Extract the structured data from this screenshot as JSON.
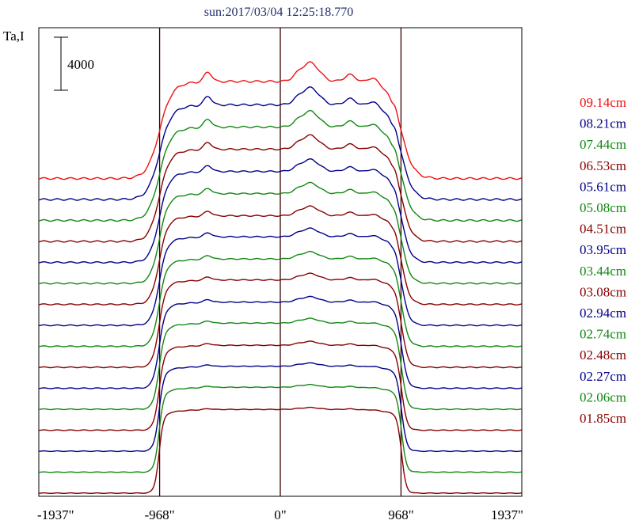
{
  "chart_data": {
    "type": "line",
    "title": "sun:2017/03/04 12:25:18.770",
    "ylabel": "Ta,I",
    "scale_bar_label": "4000",
    "scale_bar_value": 4000,
    "xlim": [
      -1937,
      1937
    ],
    "x_ticks": [
      {
        "value": -1937,
        "label": "-1937\""
      },
      {
        "value": -968,
        "label": "-968\""
      },
      {
        "value": 0,
        "label": "0\""
      },
      {
        "value": 968,
        "label": "968\""
      },
      {
        "value": 1937,
        "label": "1937\""
      }
    ],
    "vertical_markers": [
      -968,
      0,
      968
    ],
    "grid": false,
    "legend_position": "right",
    "series": [
      {
        "name": "09.14cm",
        "color": "#ee1111",
        "plateau": 8000,
        "bump": 1.55
      },
      {
        "name": "08.21cm",
        "color": "#000088",
        "plateau": 7800,
        "bump": 1.45
      },
      {
        "name": "07.44cm",
        "color": "#118811",
        "plateau": 7700,
        "bump": 1.35
      },
      {
        "name": "06.53cm",
        "color": "#880000",
        "plateau": 7600,
        "bump": 1.2
      },
      {
        "name": "05.61cm",
        "color": "#000088",
        "plateau": 7500,
        "bump": 1.05
      },
      {
        "name": "05.08cm",
        "color": "#118811",
        "plateau": 7400,
        "bump": 0.95
      },
      {
        "name": "04.51cm",
        "color": "#880000",
        "plateau": 7300,
        "bump": 0.85
      },
      {
        "name": "03.95cm",
        "color": "#000088",
        "plateau": 7300,
        "bump": 0.75
      },
      {
        "name": "03.44cm",
        "color": "#118811",
        "plateau": 7200,
        "bump": 0.65
      },
      {
        "name": "03.08cm",
        "color": "#880000",
        "plateau": 7200,
        "bump": 0.58
      },
      {
        "name": "02.94cm",
        "color": "#000088",
        "plateau": 7100,
        "bump": 0.5
      },
      {
        "name": "02.74cm",
        "color": "#118811",
        "plateau": 7100,
        "bump": 0.42
      },
      {
        "name": "02.48cm",
        "color": "#880000",
        "plateau": 7000,
        "bump": 0.36
      },
      {
        "name": "02.27cm",
        "color": "#000088",
        "plateau": 7000,
        "bump": 0.3
      },
      {
        "name": "02.06cm",
        "color": "#118811",
        "plateau": 7000,
        "bump": 0.24
      },
      {
        "name": "01.85cm",
        "color": "#880000",
        "plateau": 6900,
        "bump": 0.18
      }
    ]
  }
}
